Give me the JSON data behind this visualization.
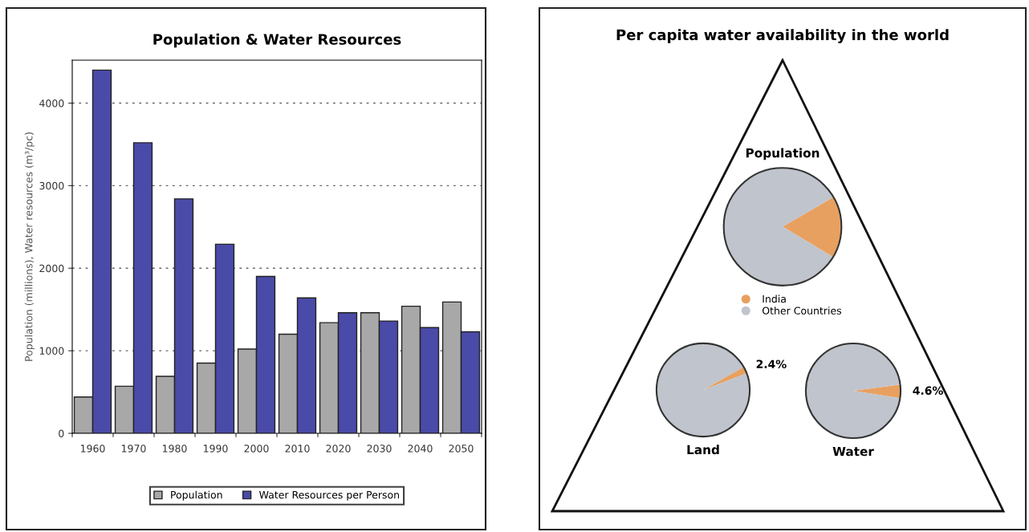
{
  "chart_data": [
    {
      "type": "bar",
      "title": "Population & Water Resources",
      "ylabel": "Population (millions), Water resources (m³/pc)",
      "categories": [
        "1960",
        "1970",
        "1980",
        "1990",
        "2000",
        "2010",
        "2020",
        "2030",
        "2040",
        "2050"
      ],
      "series": [
        {
          "name": "Population",
          "color": "#a8a8a8",
          "values": [
            440,
            570,
            690,
            850,
            1020,
            1200,
            1340,
            1460,
            1540,
            1590
          ]
        },
        {
          "name": "Water Resources per Person",
          "color": "#4a4aa8",
          "values": [
            4400,
            3520,
            2840,
            2290,
            1900,
            1640,
            1460,
            1360,
            1280,
            1230
          ]
        }
      ],
      "ylim": [
        0,
        4520
      ],
      "yticks": [
        0,
        1000,
        2000,
        3000,
        4000
      ],
      "grid": "y",
      "legend": "bottom"
    },
    {
      "type": "pie",
      "title": "Per capita water availability in the world",
      "subtitle": "Population",
      "categories": [
        "India",
        "Other Countries"
      ],
      "values": [
        17,
        83
      ],
      "colors": [
        "#e8a060",
        "#c0c4cc"
      ],
      "legend": "bottom"
    },
    {
      "type": "pie",
      "xlabel": "Land",
      "categories": [
        null,
        null
      ],
      "values": [
        2.4,
        97.6
      ],
      "colors": [
        "#e8a060",
        "#c0c4cc"
      ],
      "value_labels": [
        "2.4%",
        null
      ]
    },
    {
      "type": "pie",
      "xlabel": "Water",
      "categories": [
        null,
        null
      ],
      "values": [
        4.6,
        95.4
      ],
      "colors": [
        "#e8a060",
        "#c0c4cc"
      ],
      "value_labels": [
        "4.6%",
        null
      ]
    }
  ]
}
